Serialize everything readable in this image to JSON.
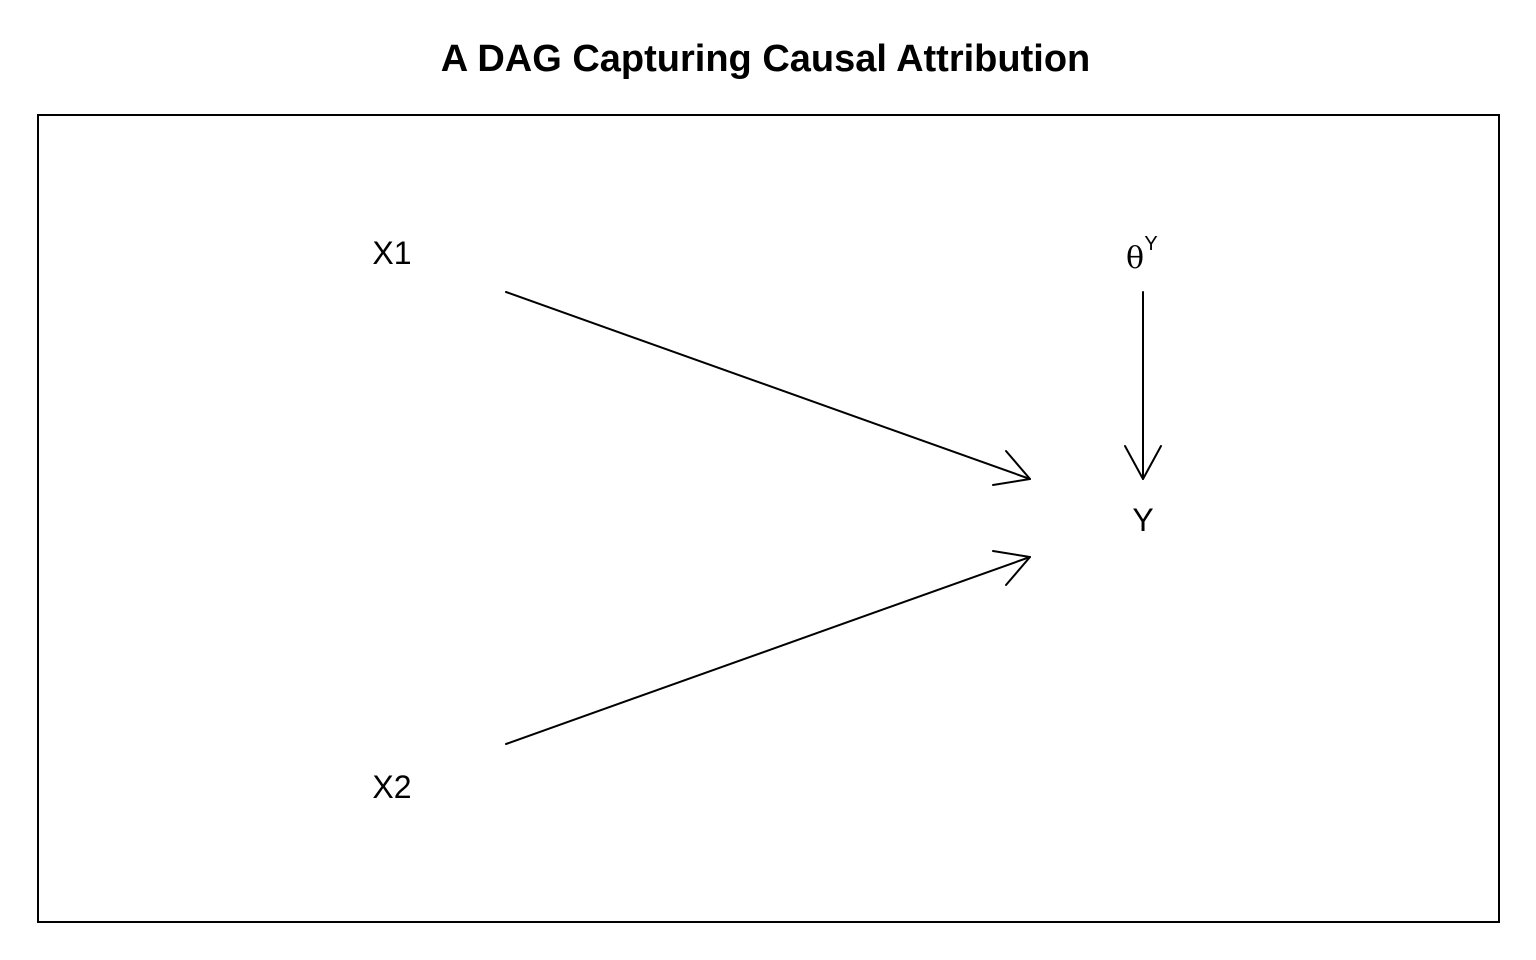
{
  "title": "A DAG Capturing Causal Attribution",
  "nodes": {
    "x1": {
      "label": "X1"
    },
    "x2": {
      "label": "X2"
    },
    "theta_y": {
      "glyph": "θ",
      "superscript": "Y"
    },
    "y": {
      "label": "Y"
    }
  },
  "edges": [
    {
      "from": "X1",
      "to": "Y"
    },
    {
      "from": "X2",
      "to": "Y"
    },
    {
      "from": "θY",
      "to": "Y"
    }
  ]
}
